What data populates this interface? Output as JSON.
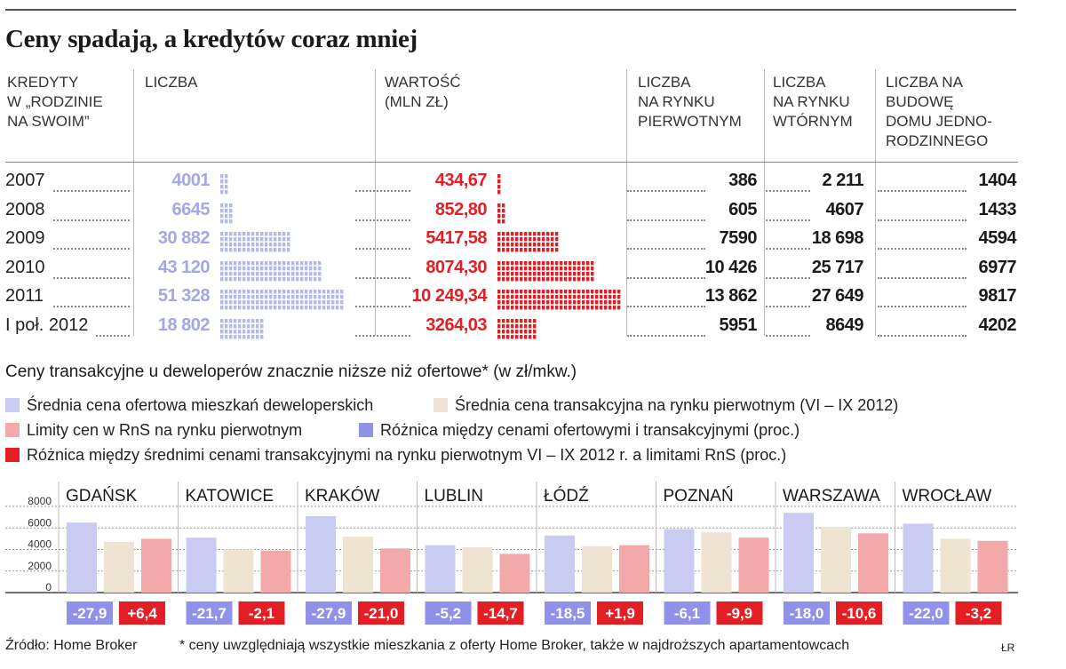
{
  "title": "Ceny spadają, a kredytów coraz mniej",
  "table": {
    "headers": {
      "credits": "KREDYTY\nW „RODZINIE\nNA SWOIM”",
      "count": "LICZBA",
      "value": "WARTOŚĆ\n(MLN ZŁ)",
      "primary": "LICZBA\nNA RYNKU\nPIERWOTNYM",
      "secondary": "LICZBA\nNA RYNKU\nWTÓRNYM",
      "house": "LICZBA NA\nBUDOWĘ\nDOMU JEDNO-\nRODZINNEGO"
    },
    "rows": [
      {
        "year": "2007",
        "count": "4001",
        "value": "434,67",
        "primary": "386",
        "secondary": "2 211",
        "house": "1404"
      },
      {
        "year": "2008",
        "count": "6645",
        "value": "852,80",
        "primary": "605",
        "secondary": "4607",
        "house": "1433"
      },
      {
        "year": "2009",
        "count": "30 882",
        "value": "5417,58",
        "primary": "7590",
        "secondary": "18 698",
        "house": "4594"
      },
      {
        "year": "2010",
        "count": "43 120",
        "value": "8074,30",
        "primary": "10 426",
        "secondary": "25 717",
        "house": "6977"
      },
      {
        "year": "2011",
        "count": "51 328",
        "value": "10 249,34",
        "primary": "13 862",
        "secondary": "27 649",
        "house": "9817"
      },
      {
        "year": "I poł. 2012",
        "count": "18 802",
        "value": "3264,03",
        "primary": "5951",
        "secondary": "8649",
        "house": "4202"
      }
    ],
    "colors": {
      "count": "#b5b7ef",
      "value": "#e31e24"
    }
  },
  "subtitle": "Ceny transakcyjne u deweloperów znacznie niższe niż ofertowe* (w zł/mkw.)",
  "legend": [
    {
      "label": "Średnia cena ofertowa mieszkań deweloperskich",
      "color": "#c9cbf3"
    },
    {
      "label": "Średnia cena transakcyjna na rynku pierwotnym (VI – IX 2012)",
      "color": "#efe3d2"
    },
    {
      "label": "Limity cen w RnS na rynku pierwotnym",
      "color": "#f3a9aa"
    },
    {
      "label": "Różnica między cenami ofertowymi i transakcyjnymi (proc.)",
      "color": "#8f91ea"
    },
    {
      "label": "Różnica między średnimi cenami transakcyjnymi na rynku pierwotnym VI – IX 2012 r. a limitami RnS  (proc.)",
      "color": "#e31e24"
    }
  ],
  "chart_data": {
    "type": "bar",
    "categories": [
      "GDAŃSK",
      "KATOWICE",
      "KRAKÓW",
      "LUBLIN",
      "ŁÓDŹ",
      "POZNAŃ",
      "WARSZAWA",
      "WROCŁAW"
    ],
    "series": [
      {
        "name": "Średnia cena ofertowa mieszkań deweloperskich",
        "color": "#c9cbf3",
        "values": [
          6500,
          5100,
          7100,
          4400,
          5300,
          5900,
          7400,
          6400
        ]
      },
      {
        "name": "Średnia cena transakcyjna na rynku pierwotnym (VI – IX 2012)",
        "color": "#efe3d2",
        "values": [
          4700,
          4000,
          5200,
          4200,
          4300,
          5600,
          6100,
          5000
        ]
      },
      {
        "name": "Limity cen w RnS na rynku pierwotnym",
        "color": "#f3a9aa",
        "values": [
          5000,
          3900,
          4100,
          3600,
          4400,
          5100,
          5500,
          4800
        ]
      }
    ],
    "badges": {
      "offer_vs_transaction": [
        "-27,9",
        "-21,7",
        "-27,9",
        "-5,2",
        "-18,5",
        "-6,1",
        "-18,0",
        "-22,0"
      ],
      "transaction_vs_limit": [
        "+6,4",
        "-2,1",
        "-21,0",
        "-14,7",
        "+1,9",
        "-9,9",
        "-10,6",
        "-3,2"
      ],
      "colors": {
        "offer": "#8f91ea",
        "limit": "#e31e24"
      }
    },
    "yticks": [
      "0",
      "2000",
      "4000",
      "6000",
      "8000"
    ],
    "ylim": [
      0,
      8000
    ],
    "grid": true
  },
  "footer": {
    "source": "Źródło: Home Broker",
    "note": "* ceny uwzględniają wszystkie mieszkania z oferty Home Broker, także w najdroższych apartamentowcach",
    "credit": "ŁR"
  }
}
